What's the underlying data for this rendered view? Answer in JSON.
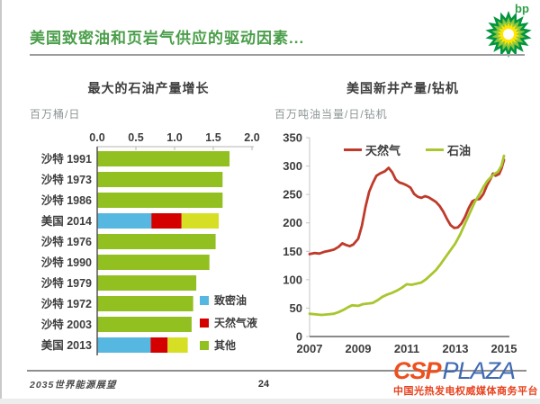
{
  "page": {
    "title": "美国致密油和页岩气供应的驱动因素...",
    "footer_left": "2035世界能源展望",
    "page_number": "24"
  },
  "logo": {
    "text": "bp"
  },
  "watermark": {
    "csp": "CSP",
    "plaza": "PLAZA",
    "tagline": "中国光热发电权威媒体商务平台"
  },
  "colors": {
    "title_green": "#4a9e49",
    "text_dark": "#3d3d3d",
    "unit_gray": "#8d9494",
    "axis_gray": "#8a8a8a",
    "bar_green": "#92c021",
    "bar_yellow_green": "#d6df23",
    "bar_blue": "#56b7e0",
    "bar_red": "#d40000",
    "line_red": "#bf3a2b",
    "line_green": "#a8c62e"
  },
  "chart_data": [
    {
      "type": "bar",
      "orientation": "horizontal",
      "title": "最大的石油产量增长",
      "xlabel": "",
      "ylabel": "百万桶/日",
      "xlim": [
        0.0,
        2.0
      ],
      "xticks": [
        "0.0",
        "0.5",
        "1.0",
        "1.5",
        "2.0"
      ],
      "grid": false,
      "legend_position": "lower-right",
      "legend": [
        {
          "label": "致密油",
          "color": "#56b7e0"
        },
        {
          "label": "天然气液",
          "color": "#d40000"
        },
        {
          "label": "其他",
          "color": "#92c021"
        }
      ],
      "bars": [
        {
          "category": "沙特 1991",
          "segments": [
            {
              "key": "其他",
              "value": 1.71,
              "color": "#92c021"
            }
          ]
        },
        {
          "category": "沙特 1973",
          "segments": [
            {
              "key": "其他",
              "value": 1.62,
              "color": "#92c021"
            }
          ]
        },
        {
          "category": "沙特 1986",
          "segments": [
            {
              "key": "其他",
              "value": 1.62,
              "color": "#92c021"
            }
          ]
        },
        {
          "category": "美国 2014",
          "segments": [
            {
              "key": "致密油",
              "value": 0.7,
              "color": "#56b7e0"
            },
            {
              "key": "天然气液",
              "value": 0.39,
              "color": "#d40000"
            },
            {
              "key": "其他",
              "value": 0.48,
              "color": "#d6df23"
            }
          ]
        },
        {
          "category": "沙特 1976",
          "segments": [
            {
              "key": "其他",
              "value": 1.53,
              "color": "#92c021"
            }
          ]
        },
        {
          "category": "沙特 1990",
          "segments": [
            {
              "key": "其他",
              "value": 1.45,
              "color": "#92c021"
            }
          ]
        },
        {
          "category": "沙特 1979",
          "segments": [
            {
              "key": "其他",
              "value": 1.28,
              "color": "#92c021"
            }
          ]
        },
        {
          "category": "沙特 1972",
          "segments": [
            {
              "key": "其他",
              "value": 1.24,
              "color": "#92c021"
            }
          ]
        },
        {
          "category": "沙特 2003",
          "segments": [
            {
              "key": "其他",
              "value": 1.22,
              "color": "#92c021"
            }
          ]
        },
        {
          "category": "美国 2013",
          "segments": [
            {
              "key": "致密油",
              "value": 0.69,
              "color": "#56b7e0"
            },
            {
              "key": "天然气液",
              "value": 0.22,
              "color": "#d40000"
            },
            {
              "key": "其他",
              "value": 0.26,
              "color": "#d6df23"
            }
          ]
        }
      ]
    },
    {
      "type": "line",
      "title": "美国新井产量/钻机",
      "xlabel": "",
      "ylabel": "百万吨油当量/日/钻机",
      "xlim": [
        2007,
        2015
      ],
      "ylim": [
        0,
        350
      ],
      "xticks": [
        "2007",
        "2009",
        "2011",
        "2013",
        "2015"
      ],
      "yticks": [
        350,
        300,
        250,
        200,
        150,
        100,
        50,
        0
      ],
      "grid": false,
      "legend_position": "top-inside",
      "series": [
        {
          "name": "天然气",
          "color": "#bf3a2b",
          "points": [
            [
              2007.0,
              145
            ],
            [
              2007.2,
              147
            ],
            [
              2007.4,
              146
            ],
            [
              2007.6,
              149
            ],
            [
              2007.8,
              151
            ],
            [
              2008.0,
              153
            ],
            [
              2008.2,
              158
            ],
            [
              2008.35,
              164
            ],
            [
              2008.5,
              161
            ],
            [
              2008.65,
              159
            ],
            [
              2008.8,
              162
            ],
            [
              2009.0,
              172
            ],
            [
              2009.15,
              195
            ],
            [
              2009.3,
              228
            ],
            [
              2009.45,
              255
            ],
            [
              2009.6,
              270
            ],
            [
              2009.75,
              283
            ],
            [
              2009.9,
              287
            ],
            [
              2010.1,
              291
            ],
            [
              2010.25,
              297
            ],
            [
              2010.4,
              289
            ],
            [
              2010.55,
              276
            ],
            [
              2010.7,
              271
            ],
            [
              2010.85,
              269
            ],
            [
              2011.0,
              266
            ],
            [
              2011.15,
              262
            ],
            [
              2011.3,
              251
            ],
            [
              2011.45,
              246
            ],
            [
              2011.6,
              244
            ],
            [
              2011.75,
              247
            ],
            [
              2011.9,
              245
            ],
            [
              2012.05,
              241
            ],
            [
              2012.2,
              237
            ],
            [
              2012.35,
              230
            ],
            [
              2012.5,
              220
            ],
            [
              2012.65,
              207
            ],
            [
              2012.8,
              196
            ],
            [
              2012.95,
              191
            ],
            [
              2013.1,
              192
            ],
            [
              2013.25,
              199
            ],
            [
              2013.4,
              211
            ],
            [
              2013.55,
              226
            ],
            [
              2013.7,
              238
            ],
            [
              2013.85,
              241
            ],
            [
              2014.0,
              242
            ],
            [
              2014.15,
              251
            ],
            [
              2014.3,
              266
            ],
            [
              2014.45,
              278
            ],
            [
              2014.55,
              287
            ],
            [
              2014.65,
              283
            ],
            [
              2014.8,
              286
            ],
            [
              2014.9,
              296
            ],
            [
              2015.0,
              311
            ]
          ]
        },
        {
          "name": "石油",
          "color": "#a8c62e",
          "points": [
            [
              2007.0,
              40
            ],
            [
              2007.25,
              39
            ],
            [
              2007.5,
              38
            ],
            [
              2007.75,
              39
            ],
            [
              2008.0,
              40
            ],
            [
              2008.2,
              43
            ],
            [
              2008.4,
              47
            ],
            [
              2008.6,
              52
            ],
            [
              2008.75,
              55
            ],
            [
              2009.0,
              54
            ],
            [
              2009.2,
              57
            ],
            [
              2009.4,
              58
            ],
            [
              2009.6,
              59
            ],
            [
              2009.8,
              64
            ],
            [
              2010.0,
              70
            ],
            [
              2010.2,
              74
            ],
            [
              2010.4,
              77
            ],
            [
              2010.6,
              81
            ],
            [
              2010.8,
              86
            ],
            [
              2011.0,
              92
            ],
            [
              2011.2,
              91
            ],
            [
              2011.4,
              93
            ],
            [
              2011.6,
              95
            ],
            [
              2011.8,
              101
            ],
            [
              2012.0,
              109
            ],
            [
              2012.2,
              117
            ],
            [
              2012.4,
              128
            ],
            [
              2012.6,
              140
            ],
            [
              2012.8,
              152
            ],
            [
              2013.0,
              164
            ],
            [
              2013.2,
              180
            ],
            [
              2013.4,
              199
            ],
            [
              2013.6,
              218
            ],
            [
              2013.8,
              237
            ],
            [
              2014.0,
              251
            ],
            [
              2014.15,
              263
            ],
            [
              2014.3,
              273
            ],
            [
              2014.45,
              280
            ],
            [
              2014.6,
              286
            ],
            [
              2014.75,
              290
            ],
            [
              2014.9,
              301
            ],
            [
              2015.0,
              318
            ]
          ]
        }
      ]
    }
  ]
}
